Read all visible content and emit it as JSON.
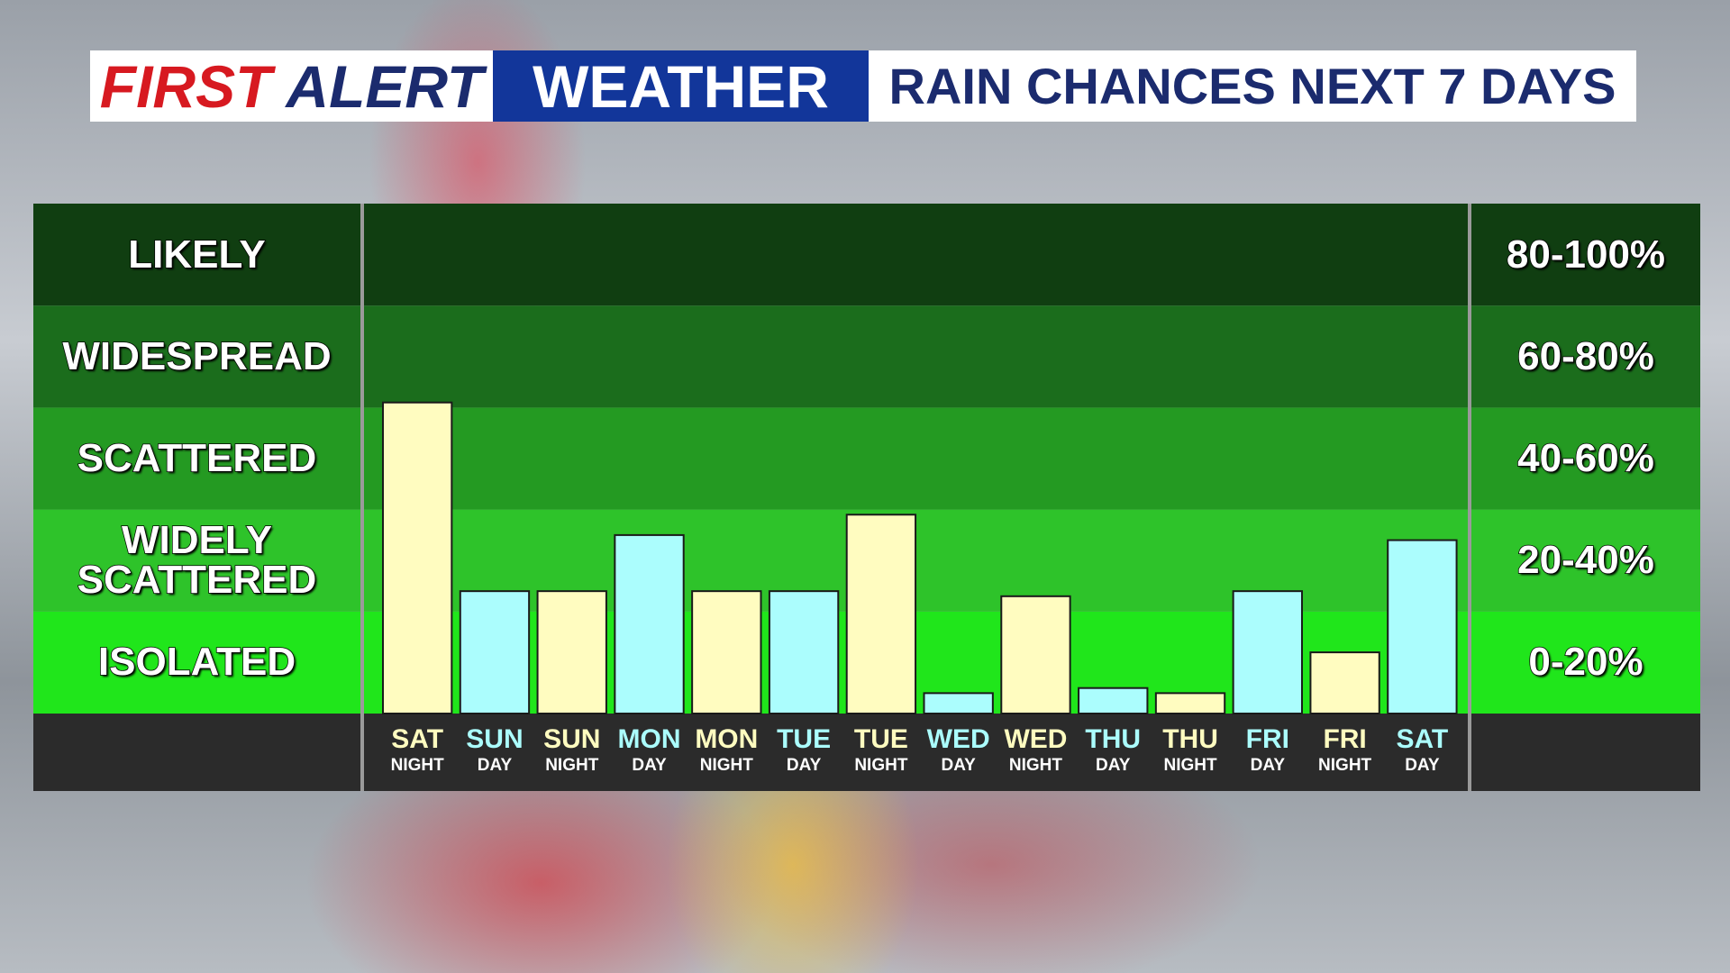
{
  "chart_data": {
    "type": "bar",
    "header": {
      "brand_first": "FIRST",
      "brand_second": "ALERT",
      "brand_third": "WEATHER"
    },
    "title": "RAIN CHANCES NEXT 7 DAYS",
    "categories": [
      "SAT",
      "SUN",
      "SUN",
      "MON",
      "MON",
      "TUE",
      "TUE",
      "WED",
      "WED",
      "THU",
      "THU",
      "FRI",
      "FRI",
      "SAT"
    ],
    "periods": [
      "NIGHT",
      "DAY",
      "NIGHT",
      "DAY",
      "NIGHT",
      "DAY",
      "NIGHT",
      "DAY",
      "NIGHT",
      "DAY",
      "NIGHT",
      "DAY",
      "NIGHT",
      "DAY"
    ],
    "values": [
      61,
      24,
      24,
      35,
      24,
      24,
      39,
      4,
      23,
      5,
      4,
      24,
      12,
      34
    ],
    "colors": [
      "#fffcc0",
      "#abfdfd",
      "#fffcc0",
      "#abfdfd",
      "#fffcc0",
      "#abfdfd",
      "#fffcc0",
      "#abfdfd",
      "#fffcc0",
      "#abfdfd",
      "#fffcc0",
      "#abfdfd",
      "#fffcc0",
      "#abfdfd"
    ],
    "ylim": [
      0,
      100
    ],
    "yticks": [
      0,
      20,
      40,
      60,
      80,
      100
    ],
    "bands": [
      {
        "name": "ISOLATED",
        "range": "0-20%",
        "color": "#20e61b"
      },
      {
        "name": "WIDELY SCATTERED",
        "range": "20-40%",
        "color": "#2ec32a"
      },
      {
        "name": "SCATTERED",
        "range": "40-60%",
        "color": "#249a22"
      },
      {
        "name": "WIDESPREAD",
        "range": "60-80%",
        "color": "#1b6d1c"
      },
      {
        "name": "LIKELY",
        "range": "80-100%",
        "color": "#103e11"
      }
    ]
  }
}
